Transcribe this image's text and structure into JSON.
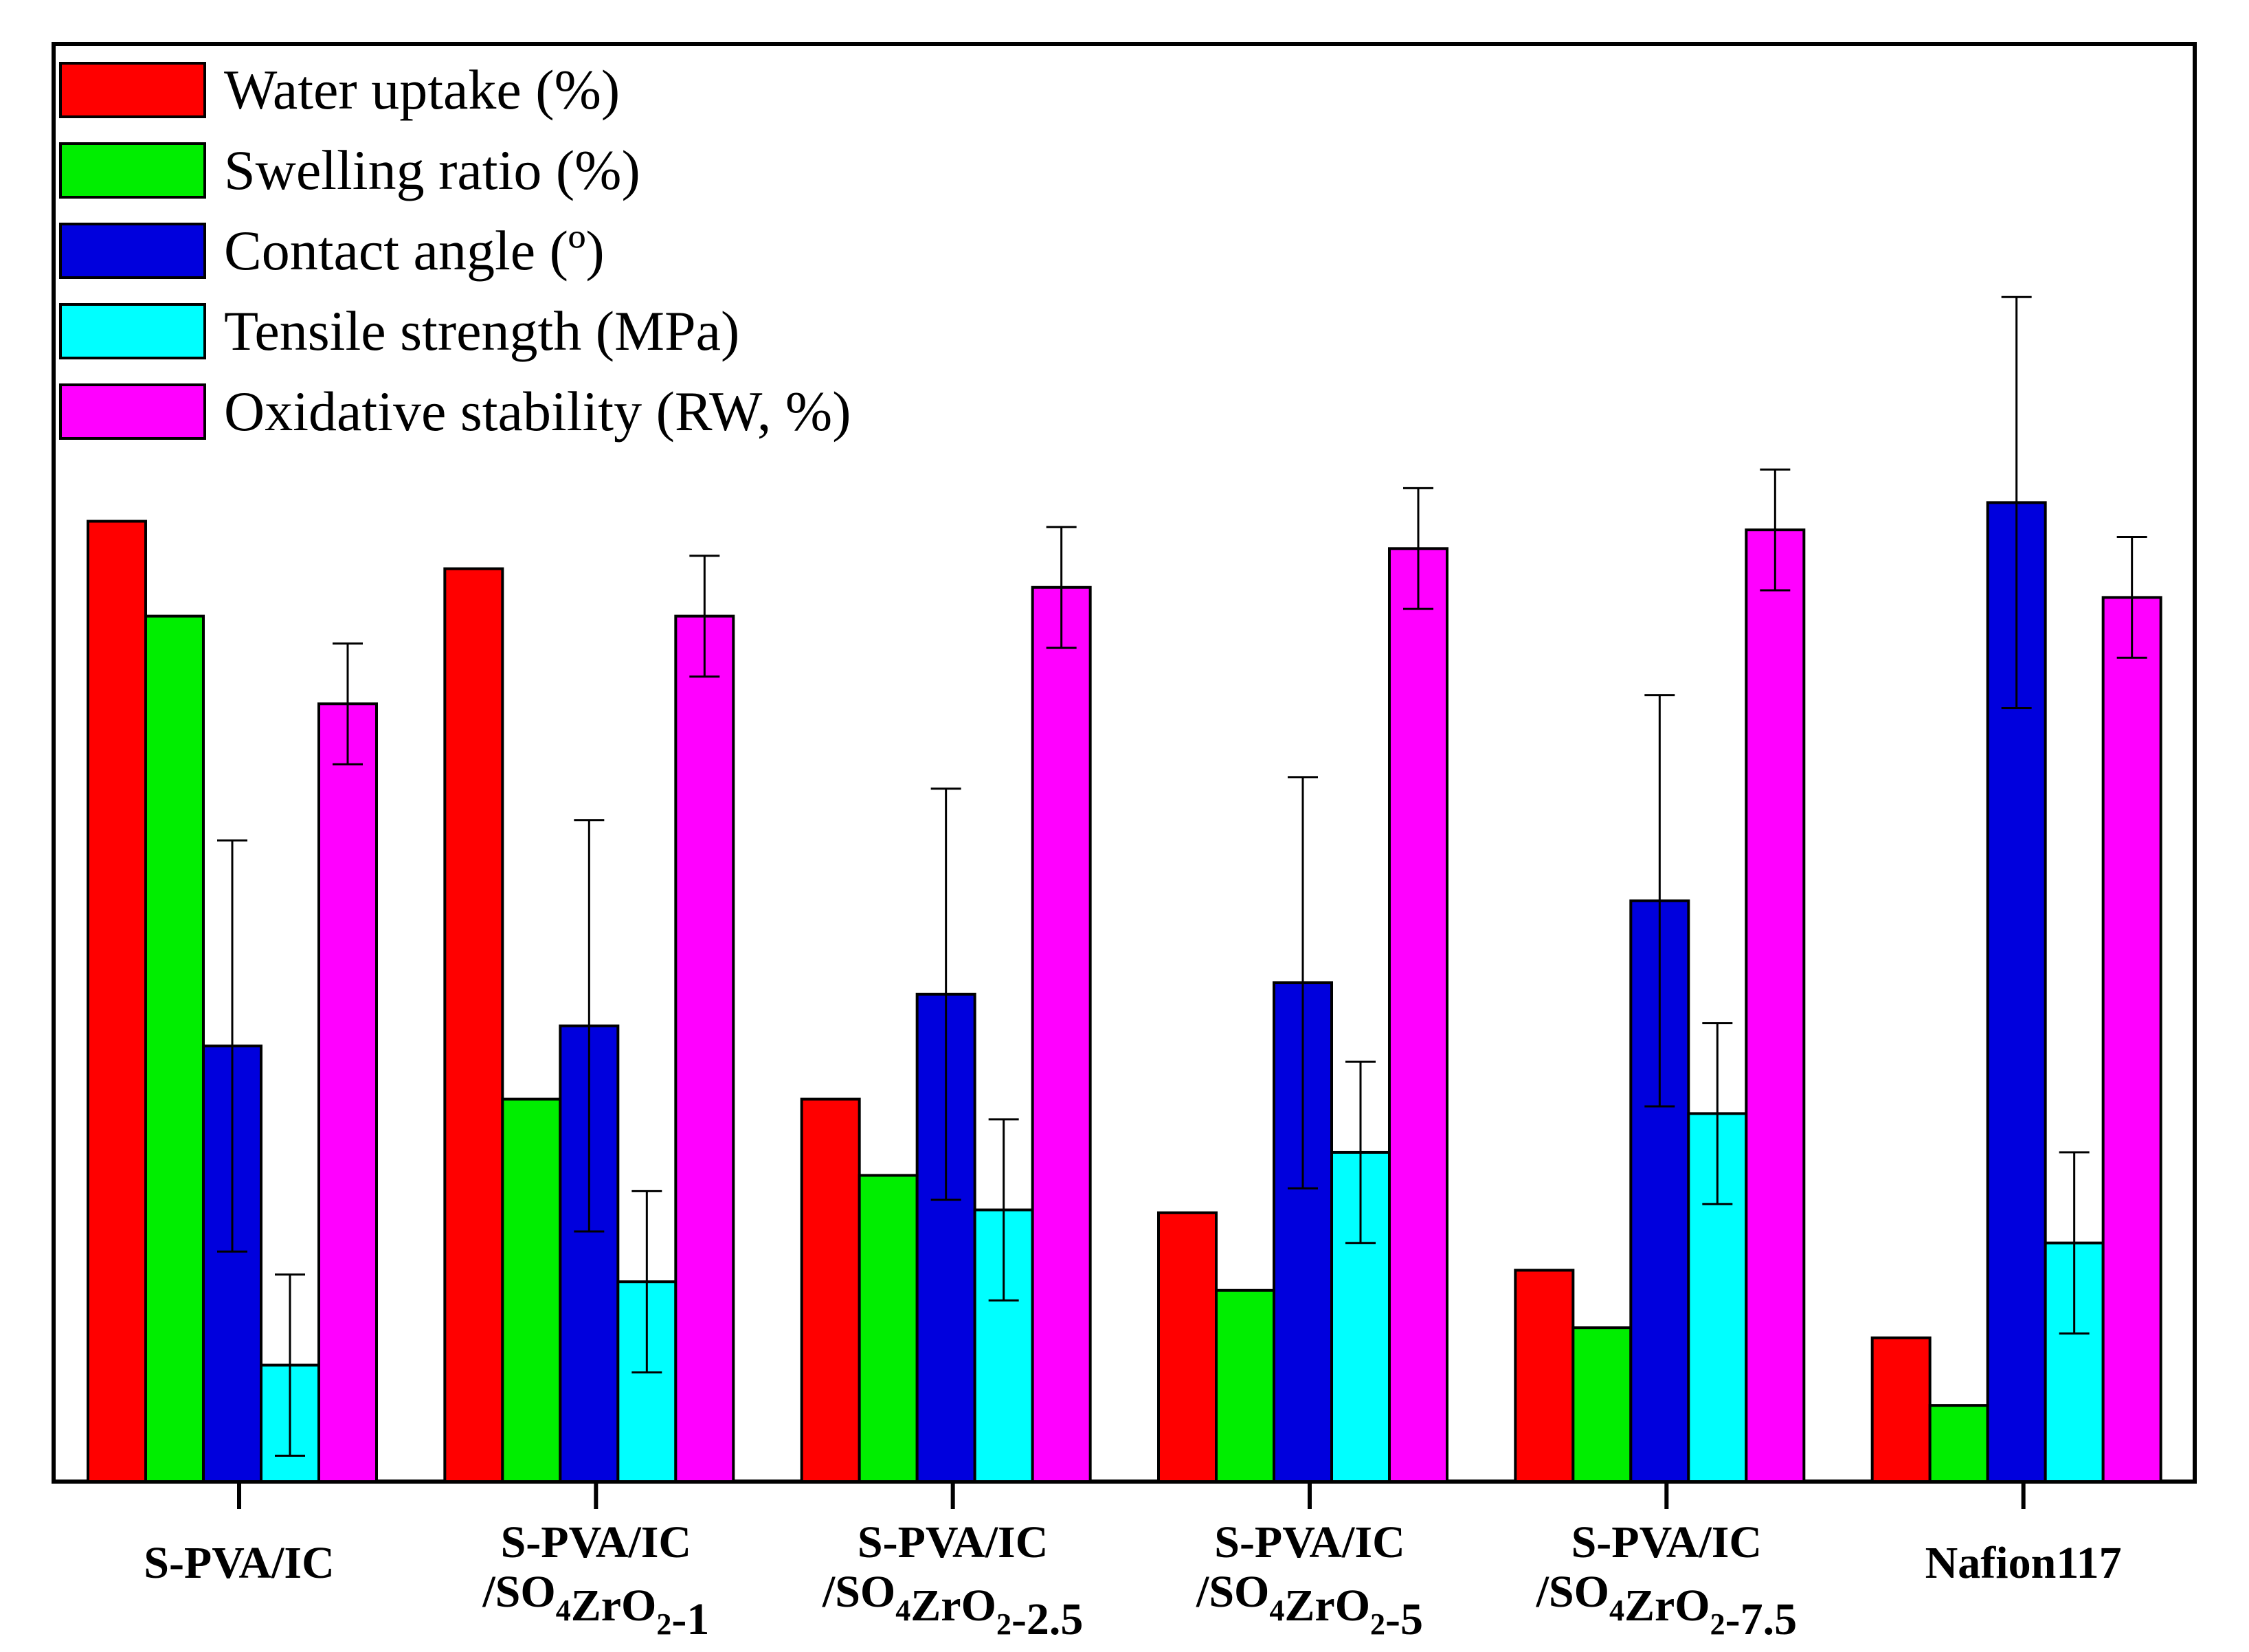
{
  "chart_data": {
    "type": "bar",
    "title": "",
    "xlabel": "",
    "ylabel": "",
    "ylim": [
      0,
      100
    ],
    "grid": false,
    "legend_position": "top-left",
    "categories": [
      {
        "lines": [
          {
            "text": "S-PVA/IC"
          }
        ]
      },
      {
        "lines": [
          {
            "text": "S-PVA/IC"
          },
          {
            "parts": [
              {
                "t": "/SO"
              },
              {
                "t": "4",
                "sub": true
              },
              {
                "t": "ZrO"
              },
              {
                "t": "2",
                "sub": true
              },
              {
                "t": "-1"
              }
            ]
          }
        ]
      },
      {
        "lines": [
          {
            "text": "S-PVA/IC"
          },
          {
            "parts": [
              {
                "t": "/SO"
              },
              {
                "t": "4",
                "sub": true
              },
              {
                "t": "ZrO"
              },
              {
                "t": "2",
                "sub": true
              },
              {
                "t": "-2.5"
              }
            ]
          }
        ]
      },
      {
        "lines": [
          {
            "text": "S-PVA/IC"
          },
          {
            "parts": [
              {
                "t": "/SO"
              },
              {
                "t": "4",
                "sub": true
              },
              {
                "t": "ZrO"
              },
              {
                "t": "2",
                "sub": true
              },
              {
                "t": "-5"
              }
            ]
          }
        ]
      },
      {
        "lines": [
          {
            "text": "S-PVA/IC"
          },
          {
            "parts": [
              {
                "t": "/SO"
              },
              {
                "t": "4",
                "sub": true
              },
              {
                "t": "ZrO"
              },
              {
                "t": "2",
                "sub": true
              },
              {
                "t": "-7.5"
              }
            ]
          }
        ]
      },
      {
        "lines": [
          {
            "text": "Nafion117"
          }
        ]
      }
    ],
    "series": [
      {
        "name": "Water uptake (%)",
        "color": "#ff0000",
        "values": [
          66.8,
          63.5,
          26.6,
          18.7,
          14.7,
          10.0
        ],
        "errors": null
      },
      {
        "name": "Swelling ratio (%)",
        "color": "#00ee00",
        "values": [
          60.2,
          26.6,
          21.3,
          13.3,
          10.7,
          5.3
        ],
        "errors": null
      },
      {
        "name": "Contact angle (º)",
        "color": "#0000dd",
        "values": [
          30.3,
          31.7,
          33.9,
          34.7,
          40.4,
          68.1
        ],
        "errors": [
          14.3,
          14.3,
          14.3,
          14.3,
          14.3,
          14.3
        ]
      },
      {
        "name": "Tensile strength (MPa)",
        "color": "#00ffff",
        "values": [
          8.1,
          13.9,
          18.9,
          22.9,
          25.6,
          16.6
        ],
        "errors": [
          6.3,
          6.3,
          6.3,
          6.3,
          6.3,
          6.3
        ]
      },
      {
        "name": "Oxidative stability (RW, %)",
        "color": "#ff00ff",
        "values": [
          54.1,
          60.2,
          62.2,
          64.9,
          66.2,
          61.5
        ],
        "errors": [
          4.2,
          4.2,
          4.2,
          4.2,
          4.2,
          4.2
        ]
      }
    ]
  }
}
